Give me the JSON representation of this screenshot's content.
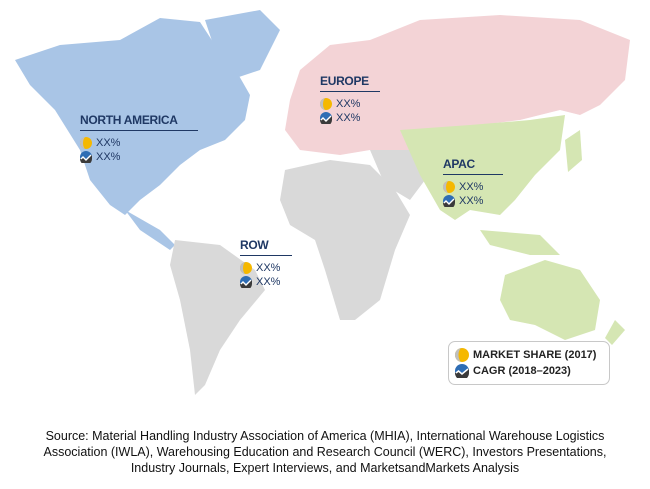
{
  "regions": [
    {
      "name": "NORTH AMERICA",
      "market_share": "XX%",
      "cagr": "XX%",
      "color": "#a9c5e6"
    },
    {
      "name": "EUROPE",
      "market_share": "XX%",
      "cagr": "XX%",
      "color": "#f3d3d6"
    },
    {
      "name": "APAC",
      "market_share": "XX%",
      "cagr": "XX%",
      "color": "#d5e6b3"
    },
    {
      "name": "ROW",
      "market_share": "XX%",
      "cagr": "XX%",
      "color": "#d9d9d9"
    }
  ],
  "legend": {
    "market_share": "MARKET SHARE (2017)",
    "cagr": "CAGR (2018–2023)"
  },
  "source": [
    "Source: Material Handling Industry Association of America (MHIA), International Warehouse Logistics",
    "Association (IWLA), Warehousing Education and Research Council (WERC), Investors Presentations,",
    "Industry Journals, Expert Interviews, and MarketsandMarkets Analysis"
  ]
}
